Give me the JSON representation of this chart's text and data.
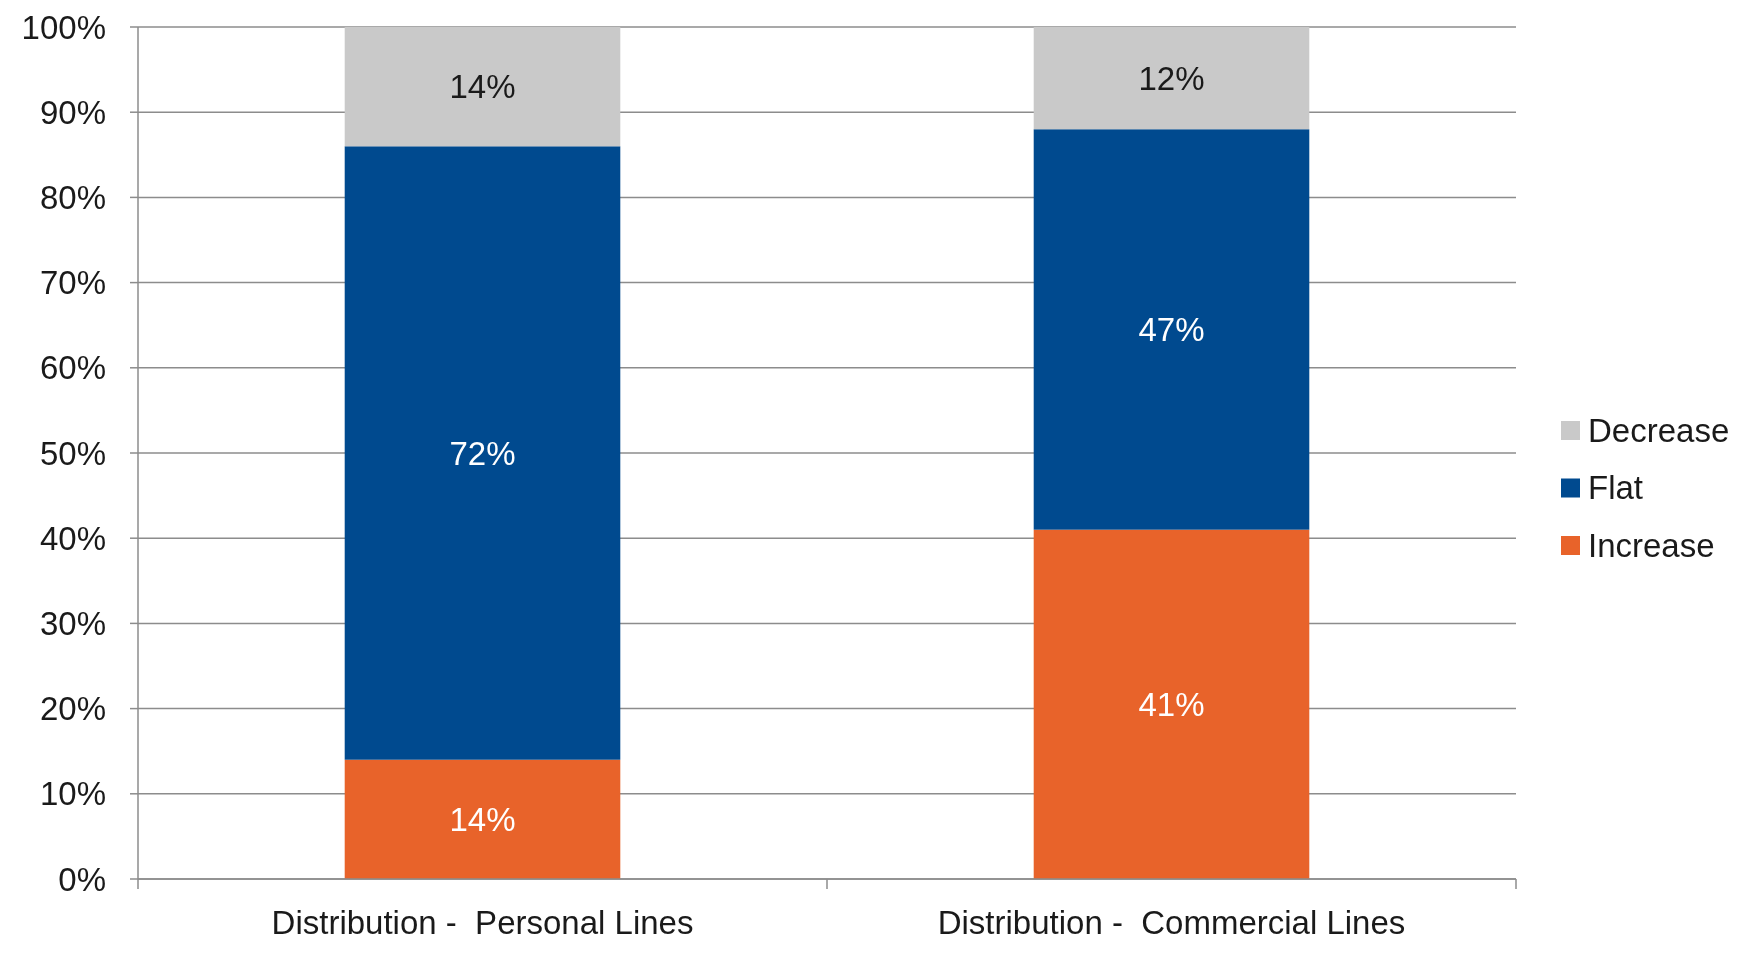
{
  "chart_data": {
    "type": "bar",
    "stacked": true,
    "categories": [
      "Distribution -  Personal Lines",
      "Distribution -  Commercial Lines"
    ],
    "series": [
      {
        "name": "Increase",
        "color": "#e8632a",
        "values": [
          14,
          41
        ]
      },
      {
        "name": "Flat",
        "color": "#004a8f",
        "values": [
          72,
          47
        ]
      },
      {
        "name": "Decrease",
        "color": "#c9c9c9",
        "values": [
          14,
          12
        ]
      }
    ],
    "ylim": [
      0,
      100
    ],
    "yticks": [
      {
        "value": 0,
        "label": "0%"
      },
      {
        "value": 10,
        "label": "10%"
      },
      {
        "value": 20,
        "label": "20%"
      },
      {
        "value": 30,
        "label": "30%"
      },
      {
        "value": 40,
        "label": "40%"
      },
      {
        "value": 50,
        "label": "50%"
      },
      {
        "value": 60,
        "label": "60%"
      },
      {
        "value": 70,
        "label": "70%"
      },
      {
        "value": 80,
        "label": "80%"
      },
      {
        "value": 90,
        "label": "90%"
      },
      {
        "value": 100,
        "label": "100%"
      }
    ],
    "value_labels": [
      [
        "14%",
        "41%"
      ],
      [
        "72%",
        "47%"
      ],
      [
        "14%",
        "12%"
      ]
    ],
    "grid": "y",
    "legend": "right"
  }
}
